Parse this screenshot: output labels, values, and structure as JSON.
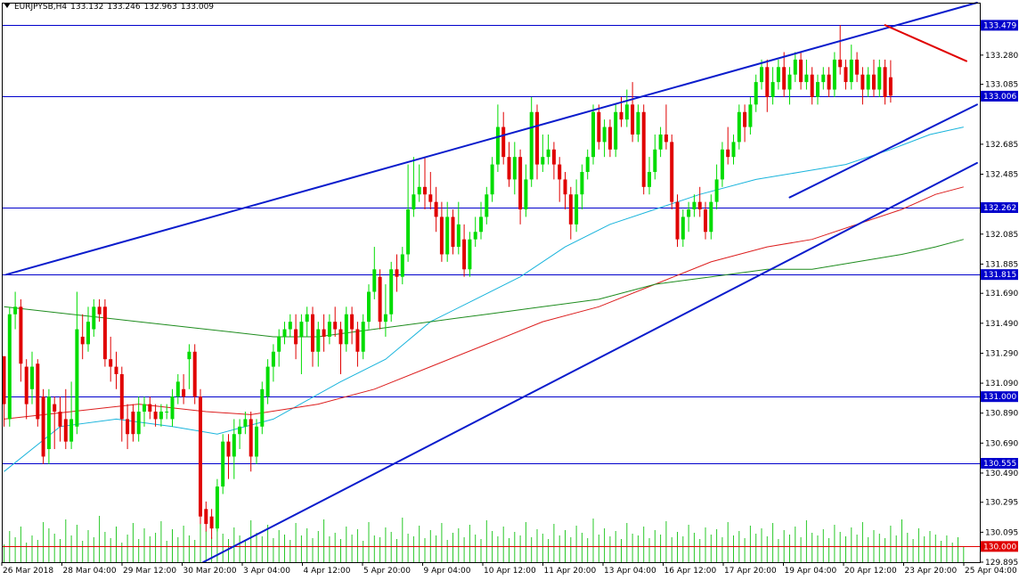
{
  "header": {
    "symbol": "EURJPYSB,H4",
    "open": "133.132",
    "high": "133.246",
    "low": "132.963",
    "close": "133.009"
  },
  "chart_data": {
    "type": "candlestick",
    "ylim": [
      129.895,
      133.63
    ],
    "y_ticks": [
      "133.280",
      "133.085",
      "132.685",
      "132.485",
      "132.085",
      "131.885",
      "131.690",
      "131.490",
      "131.290",
      "131.090",
      "130.890",
      "130.690",
      "130.490",
      "130.295",
      "130.095",
      "129.895"
    ],
    "x_labels": [
      "26 Mar 2018",
      "28 Mar 04:00",
      "29 Mar 12:00",
      "30 Mar 20:00",
      "3 Apr 04:00",
      "4 Apr 12:00",
      "5 Apr 20:00",
      "9 Apr 04:00",
      "10 Apr 12:00",
      "11 Apr 20:00",
      "13 Apr 04:00",
      "16 Apr 12:00",
      "17 Apr 20:00",
      "19 Apr 04:00",
      "20 Apr 12:00",
      "23 Apr 20:00",
      "25 Apr 04:00"
    ],
    "horizontal_levels": [
      {
        "value": 133.479,
        "label": "133.479",
        "color": "#0000cc"
      },
      {
        "value": 133.006,
        "label": "133.006",
        "color": "#0000cc"
      },
      {
        "value": 132.262,
        "label": "132.262",
        "color": "#0000cc"
      },
      {
        "value": 131.815,
        "label": "131.815",
        "color": "#0000cc"
      },
      {
        "value": 131.0,
        "label": "131.000",
        "color": "#0000cc"
      },
      {
        "value": 130.555,
        "label": "130.555",
        "color": "#0000cc"
      },
      {
        "value": 130.0,
        "label": "130.000",
        "color": "#e00000"
      }
    ],
    "colors": {
      "bull": "#00dc00",
      "bear": "#e00000",
      "level_blue": "#0000cc",
      "trend_blue": "#0a1ccc",
      "ma_fast": "#19b4dc",
      "ma_mid": "#dc1e1e",
      "ma_slow": "#1e8c1e",
      "volume": "#28c828",
      "resistance_red": "#e00000"
    },
    "trendlines": [
      {
        "name": "upper-channel",
        "x": [
          0.4,
          173.4
        ],
        "y": [
          131.815,
          133.63
        ],
        "color": "#0a1ccc",
        "width": 2
      },
      {
        "name": "lower-trend",
        "x": [
          35.5,
          173.4
        ],
        "y": [
          129.895,
          132.56
        ],
        "color": "#0a1ccc",
        "width": 2
      },
      {
        "name": "inner-support",
        "x": [
          140.0,
          173.4
        ],
        "y": [
          132.33,
          132.95
        ],
        "color": "#0a1ccc",
        "width": 2
      },
      {
        "name": "red-resistance",
        "x": [
          157.0,
          171.5
        ],
        "y": [
          133.48,
          133.24
        ],
        "color": "#e00000",
        "width": 2
      }
    ],
    "candles": [
      [
        131.27,
        130.95,
        131.05,
        130.8
      ],
      [
        130.85,
        131.55,
        131.6,
        130.8
      ],
      [
        131.55,
        131.6,
        131.7,
        131.45
      ],
      [
        131.6,
        131.22,
        131.65,
        131.1
      ],
      [
        131.2,
        130.95,
        131.25,
        130.85
      ],
      [
        131.05,
        131.2,
        131.3,
        130.95
      ],
      [
        131.22,
        130.85,
        131.25,
        130.8
      ],
      [
        131.0,
        130.6,
        131.05,
        130.55
      ],
      [
        130.65,
        131.0,
        131.05,
        130.55
      ],
      [
        130.95,
        130.9,
        131.0,
        130.65
      ],
      [
        130.9,
        130.8,
        131.0,
        130.7
      ],
      [
        130.85,
        130.7,
        131.05,
        130.65
      ],
      [
        130.7,
        130.85,
        131.1,
        130.65
      ],
      [
        130.8,
        131.45,
        131.7,
        130.75
      ],
      [
        131.4,
        131.35,
        131.55,
        131.25
      ],
      [
        131.35,
        131.5,
        131.6,
        131.3
      ],
      [
        131.45,
        131.6,
        131.65,
        131.4
      ],
      [
        131.6,
        131.55,
        131.65,
        131.5
      ],
      [
        131.6,
        131.25,
        131.65,
        131.2
      ],
      [
        131.25,
        131.2,
        131.4,
        131.1
      ],
      [
        131.2,
        131.15,
        131.3,
        131.05
      ],
      [
        131.15,
        130.85,
        131.2,
        130.7
      ],
      [
        130.85,
        130.75,
        130.95,
        130.65
      ],
      [
        130.9,
        130.75,
        130.95,
        130.7
      ],
      [
        130.75,
        130.9,
        131.0,
        130.7
      ],
      [
        130.9,
        130.95,
        131.0,
        130.8
      ],
      [
        130.95,
        130.9,
        131.0,
        130.85
      ],
      [
        130.9,
        130.85,
        130.95,
        130.8
      ],
      [
        130.85,
        130.9,
        130.95,
        130.8
      ],
      [
        130.9,
        130.9,
        130.95,
        130.85
      ],
      [
        130.85,
        131.0,
        131.05,
        130.8
      ],
      [
        131.0,
        131.1,
        131.15,
        130.95
      ],
      [
        131.05,
        131.0,
        131.15,
        130.95
      ],
      [
        131.25,
        131.3,
        131.35,
        131.05
      ],
      [
        131.3,
        131.0,
        131.35,
        130.95
      ],
      [
        131.0,
        130.2,
        131.05,
        130.15
      ],
      [
        130.25,
        130.15,
        130.3,
        130.1
      ],
      [
        130.2,
        130.12,
        130.25,
        130.05
      ],
      [
        130.12,
        130.4,
        130.45,
        130.1
      ],
      [
        130.4,
        130.7,
        130.75,
        130.35
      ],
      [
        130.7,
        130.6,
        130.75,
        130.45
      ],
      [
        130.6,
        130.75,
        130.85,
        130.45
      ],
      [
        130.75,
        130.8,
        130.85,
        130.65
      ],
      [
        130.8,
        130.85,
        130.9,
        130.75
      ],
      [
        130.85,
        130.6,
        130.9,
        130.5
      ],
      [
        130.6,
        130.8,
        130.85,
        130.55
      ],
      [
        130.8,
        131.05,
        131.1,
        130.75
      ],
      [
        131.0,
        131.2,
        131.25,
        130.95
      ],
      [
        131.2,
        131.3,
        131.35,
        131.1
      ],
      [
        131.3,
        131.4,
        131.45,
        131.2
      ],
      [
        131.4,
        131.45,
        131.5,
        131.35
      ],
      [
        131.45,
        131.5,
        131.55,
        131.4
      ],
      [
        131.45,
        131.35,
        131.55,
        131.25
      ],
      [
        131.4,
        131.5,
        131.55,
        131.15
      ],
      [
        131.5,
        131.55,
        131.6,
        131.4
      ],
      [
        131.55,
        131.3,
        131.6,
        131.2
      ],
      [
        131.3,
        131.45,
        131.5,
        131.2
      ],
      [
        131.45,
        131.4,
        131.55,
        131.3
      ],
      [
        131.4,
        131.5,
        131.55,
        131.35
      ],
      [
        131.5,
        131.45,
        131.6,
        131.4
      ],
      [
        131.45,
        131.35,
        131.5,
        131.15
      ],
      [
        131.35,
        131.55,
        131.6,
        131.3
      ],
      [
        131.55,
        131.45,
        131.6,
        131.35
      ],
      [
        131.45,
        131.3,
        131.5,
        131.2
      ],
      [
        131.3,
        131.5,
        131.55,
        131.25
      ],
      [
        131.5,
        131.7,
        131.75,
        131.45
      ],
      [
        131.7,
        131.85,
        132.0,
        131.65
      ],
      [
        131.8,
        131.5,
        131.85,
        131.45
      ],
      [
        131.5,
        131.55,
        131.75,
        131.4
      ],
      [
        131.55,
        131.85,
        131.9,
        131.5
      ],
      [
        131.85,
        131.8,
        131.95,
        131.7
      ],
      [
        131.8,
        131.95,
        132.0,
        131.75
      ],
      [
        131.95,
        132.25,
        132.55,
        131.9
      ],
      [
        132.25,
        132.35,
        132.6,
        132.2
      ],
      [
        132.35,
        132.4,
        132.55,
        132.3
      ],
      [
        132.4,
        132.35,
        132.6,
        132.25
      ],
      [
        132.35,
        132.3,
        132.5,
        132.25
      ],
      [
        132.3,
        132.2,
        132.4,
        132.1
      ],
      [
        132.2,
        131.95,
        132.3,
        131.9
      ],
      [
        131.95,
        132.2,
        132.3,
        131.9
      ],
      [
        132.2,
        132.0,
        132.25,
        131.95
      ],
      [
        132.0,
        132.15,
        132.3,
        131.95
      ],
      [
        132.05,
        131.85,
        132.15,
        131.8
      ],
      [
        131.85,
        132.05,
        132.1,
        131.8
      ],
      [
        132.05,
        132.1,
        132.2,
        132.0
      ],
      [
        132.1,
        132.2,
        132.3,
        132.05
      ],
      [
        132.2,
        132.35,
        132.4,
        132.15
      ],
      [
        132.35,
        132.55,
        132.6,
        132.3
      ],
      [
        132.55,
        132.8,
        132.95,
        132.5
      ],
      [
        132.8,
        132.6,
        132.9,
        132.55
      ],
      [
        132.6,
        132.45,
        132.7,
        132.4
      ],
      [
        132.45,
        132.6,
        132.7,
        132.35
      ],
      [
        132.6,
        132.25,
        132.65,
        132.15
      ],
      [
        132.25,
        132.45,
        132.55,
        132.2
      ],
      [
        132.45,
        132.9,
        133.0,
        132.4
      ],
      [
        132.9,
        132.55,
        132.95,
        132.45
      ],
      [
        132.55,
        132.6,
        132.75,
        132.5
      ],
      [
        132.6,
        132.65,
        132.75,
        132.55
      ],
      [
        132.65,
        132.55,
        132.7,
        132.45
      ],
      [
        132.55,
        132.45,
        132.6,
        132.3
      ],
      [
        132.45,
        132.35,
        132.5,
        132.25
      ],
      [
        132.35,
        132.15,
        132.4,
        132.05
      ],
      [
        132.15,
        132.35,
        132.45,
        132.1
      ],
      [
        132.35,
        132.5,
        132.55,
        132.25
      ],
      [
        132.5,
        132.6,
        132.65,
        132.45
      ],
      [
        132.6,
        132.9,
        132.95,
        132.55
      ],
      [
        132.9,
        132.7,
        132.95,
        132.65
      ],
      [
        132.7,
        132.8,
        132.85,
        132.6
      ],
      [
        132.8,
        132.65,
        132.85,
        132.6
      ],
      [
        132.65,
        132.9,
        132.95,
        132.6
      ],
      [
        132.9,
        132.85,
        133.0,
        132.8
      ],
      [
        132.85,
        132.95,
        133.05,
        132.8
      ],
      [
        132.95,
        132.75,
        133.1,
        132.7
      ],
      [
        132.75,
        132.9,
        132.95,
        132.7
      ],
      [
        132.9,
        132.4,
        132.95,
        132.35
      ],
      [
        132.4,
        132.5,
        132.6,
        132.35
      ],
      [
        132.5,
        132.65,
        132.75,
        132.45
      ],
      [
        132.65,
        132.75,
        132.8,
        132.6
      ],
      [
        132.75,
        132.7,
        132.95,
        132.65
      ],
      [
        132.7,
        132.3,
        132.75,
        132.25
      ],
      [
        132.3,
        132.05,
        132.35,
        132.0
      ],
      [
        132.05,
        132.2,
        132.25,
        132.0
      ],
      [
        132.2,
        132.25,
        132.3,
        132.1
      ],
      [
        132.25,
        132.3,
        132.35,
        132.2
      ],
      [
        132.3,
        132.25,
        132.4,
        132.2
      ],
      [
        132.25,
        132.1,
        132.3,
        132.05
      ],
      [
        132.1,
        132.3,
        132.35,
        132.05
      ],
      [
        132.3,
        132.45,
        132.55,
        132.25
      ],
      [
        132.45,
        132.65,
        132.7,
        132.4
      ],
      [
        132.65,
        132.6,
        132.8,
        132.55
      ],
      [
        132.6,
        132.7,
        132.75,
        132.55
      ],
      [
        132.7,
        132.9,
        132.95,
        132.65
      ],
      [
        132.9,
        132.8,
        132.95,
        132.7
      ],
      [
        132.8,
        132.95,
        133.0,
        132.75
      ],
      [
        132.95,
        133.1,
        133.15,
        132.9
      ],
      [
        133.1,
        133.2,
        133.25,
        133.05
      ],
      [
        133.2,
        133.0,
        133.25,
        132.9
      ],
      [
        133.0,
        133.1,
        133.2,
        132.95
      ],
      [
        133.1,
        133.2,
        133.25,
        133.05
      ],
      [
        133.2,
        133.05,
        133.3,
        133.0
      ],
      [
        133.05,
        133.15,
        133.2,
        132.95
      ],
      [
        133.15,
        133.25,
        133.3,
        133.1
      ],
      [
        133.25,
        133.1,
        133.3,
        133.05
      ],
      [
        133.1,
        133.15,
        133.25,
        133.05
      ],
      [
        133.15,
        133.0,
        133.2,
        132.95
      ],
      [
        133.0,
        133.1,
        133.15,
        132.95
      ],
      [
        133.1,
        133.15,
        133.2,
        133.05
      ],
      [
        133.15,
        133.05,
        133.2,
        133.0
      ],
      [
        133.05,
        133.25,
        133.3,
        133.0
      ],
      [
        133.25,
        133.2,
        133.48,
        133.15
      ],
      [
        133.2,
        133.1,
        133.25,
        133.05
      ],
      [
        133.1,
        133.25,
        133.35,
        133.05
      ],
      [
        133.25,
        133.15,
        133.3,
        133.1
      ],
      [
        133.15,
        133.05,
        133.2,
        132.95
      ],
      [
        133.05,
        133.15,
        133.2,
        133.0
      ],
      [
        133.15,
        133.05,
        133.25,
        133.0
      ],
      [
        133.05,
        133.2,
        133.25,
        133.0
      ],
      [
        133.2,
        133.0,
        133.25,
        132.95
      ],
      [
        133.132,
        133.009,
        133.246,
        132.963
      ]
    ],
    "ma_fast": [
      [
        0,
        130.5
      ],
      [
        10,
        130.8
      ],
      [
        20,
        130.85
      ],
      [
        30,
        130.8
      ],
      [
        38,
        130.75
      ],
      [
        48,
        130.85
      ],
      [
        60,
        131.1
      ],
      [
        68,
        131.25
      ],
      [
        76,
        131.5
      ],
      [
        84,
        131.65
      ],
      [
        92,
        131.8
      ],
      [
        100,
        132.0
      ],
      [
        108,
        132.15
      ],
      [
        116,
        132.25
      ],
      [
        124,
        132.35
      ],
      [
        134,
        132.45
      ],
      [
        142,
        132.5
      ],
      [
        150,
        132.55
      ],
      [
        158,
        132.65
      ],
      [
        165,
        132.75
      ],
      [
        171,
        132.8
      ]
    ],
    "ma_mid": [
      [
        0,
        130.85
      ],
      [
        12,
        130.9
      ],
      [
        24,
        130.95
      ],
      [
        36,
        130.9
      ],
      [
        44,
        130.88
      ],
      [
        56,
        130.95
      ],
      [
        66,
        131.05
      ],
      [
        76,
        131.2
      ],
      [
        86,
        131.35
      ],
      [
        96,
        131.5
      ],
      [
        106,
        131.6
      ],
      [
        116,
        131.75
      ],
      [
        126,
        131.9
      ],
      [
        136,
        132.0
      ],
      [
        144,
        132.05
      ],
      [
        152,
        132.15
      ],
      [
        160,
        132.25
      ],
      [
        166,
        132.35
      ],
      [
        171,
        132.4
      ]
    ],
    "ma_slow": [
      [
        0,
        131.6
      ],
      [
        12,
        131.55
      ],
      [
        24,
        131.5
      ],
      [
        36,
        131.45
      ],
      [
        48,
        131.4
      ],
      [
        56,
        131.4
      ],
      [
        66,
        131.45
      ],
      [
        76,
        131.5
      ],
      [
        86,
        131.55
      ],
      [
        96,
        131.6
      ],
      [
        106,
        131.65
      ],
      [
        116,
        131.75
      ],
      [
        126,
        131.8
      ],
      [
        136,
        131.85
      ],
      [
        144,
        131.85
      ],
      [
        152,
        131.9
      ],
      [
        160,
        131.95
      ],
      [
        166,
        132.0
      ],
      [
        171,
        132.05
      ]
    ],
    "volume": [
      20,
      35,
      28,
      40,
      22,
      30,
      25,
      45,
      38,
      32,
      26,
      48,
      30,
      42,
      24,
      36,
      28,
      52,
      34,
      27,
      40,
      22,
      31,
      44,
      26,
      38,
      29,
      33,
      46,
      24,
      37,
      28,
      41,
      30,
      25,
      55,
      35,
      28,
      43,
      32,
      26,
      39,
      30,
      24,
      47,
      33,
      29,
      42,
      27,
      36,
      31,
      25,
      44,
      30,
      38,
      27,
      35,
      48,
      29,
      33,
      26,
      40,
      31,
      37,
      24,
      45,
      30,
      28,
      39,
      34,
      26,
      50,
      32,
      29,
      41,
      27,
      36,
      30,
      44,
      25,
      33,
      38,
      28,
      42,
      31,
      26,
      47,
      35,
      29,
      40,
      27,
      34,
      30,
      45,
      28,
      37,
      32,
      26,
      43,
      30,
      36,
      28,
      41,
      33,
      27,
      49,
      31,
      38,
      29,
      35,
      26,
      44,
      32,
      30,
      40,
      27,
      36,
      31,
      46,
      28,
      34,
      29,
      42,
      33,
      26,
      39,
      31,
      37,
      28,
      45,
      30,
      35,
      27,
      41,
      32,
      38,
      29,
      44,
      26,
      36,
      31,
      40,
      28,
      47,
      33,
      30,
      37,
      27,
      42,
      34,
      29,
      39,
      31,
      45,
      28,
      36,
      32,
      27,
      41,
      30,
      48,
      33,
      26,
      38,
      29,
      35,
      31,
      24,
      30,
      22,
      28,
      18
    ]
  }
}
